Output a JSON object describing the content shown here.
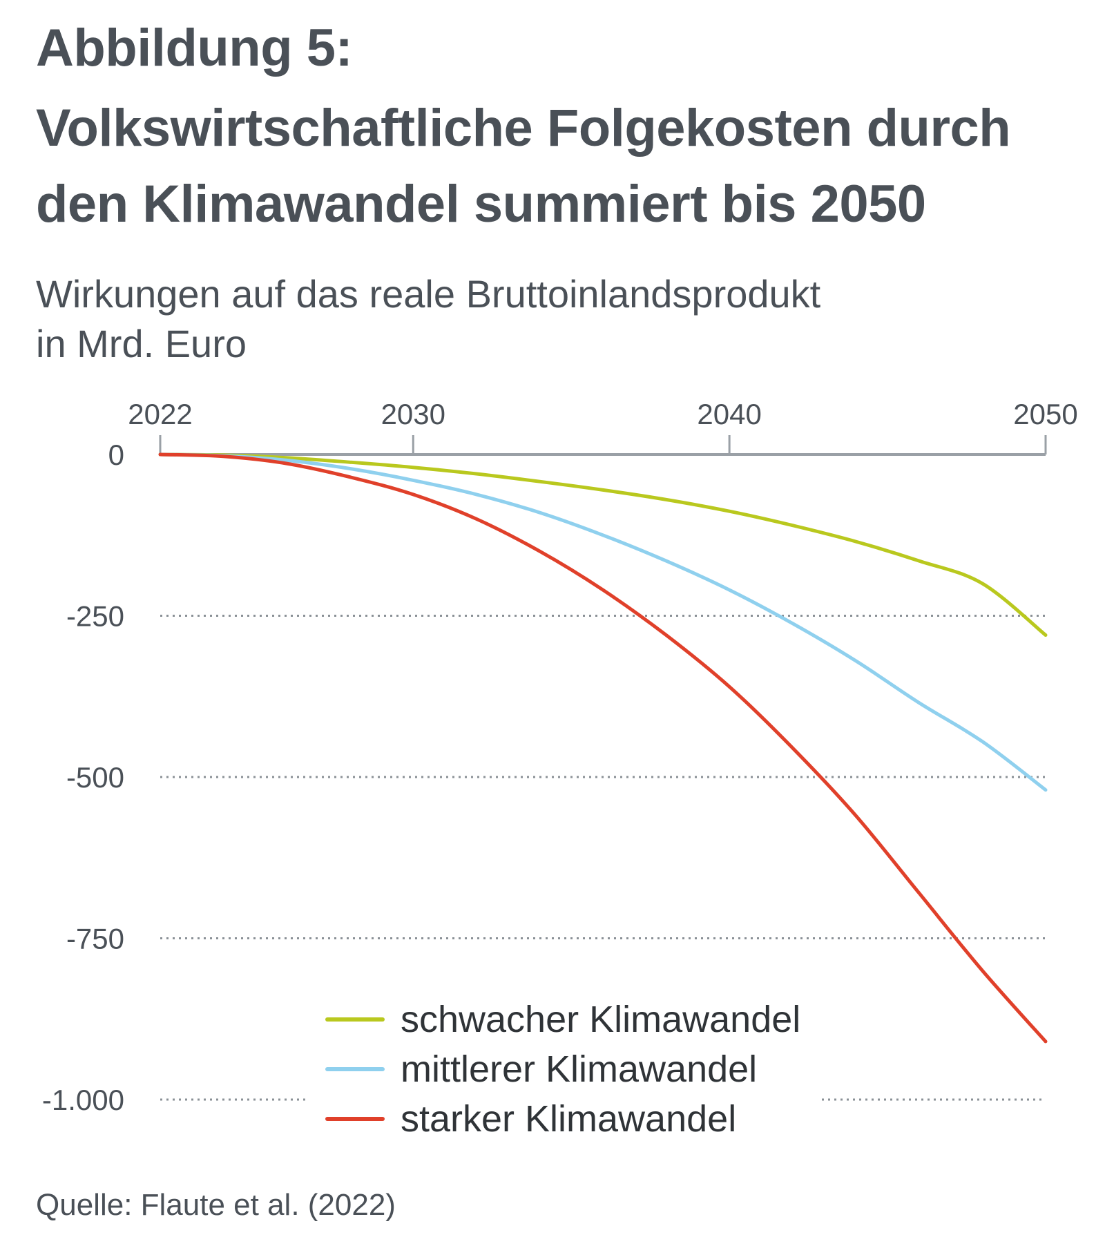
{
  "header": {
    "title_lines": [
      "Abbildung 5:",
      "Volkswirtschaftliche Folgekosten durch",
      "den Klimawandel summiert bis 2050"
    ],
    "subtitle_lines": [
      "Wirkungen auf das reale Bruttoinlandsprodukt",
      "in Mrd. Euro"
    ]
  },
  "source": "Quelle: Flaute et al. (2022)",
  "colors": {
    "text": "#4a5057",
    "axis": "#9aa0a6",
    "grid": "#8a9096",
    "schwach": "#b9c81e",
    "mittel": "#8fd0ee",
    "stark": "#e0402a"
  },
  "chart_data": {
    "type": "line",
    "title": "Volkswirtschaftliche Folgekosten durch den Klimawandel summiert bis 2050",
    "xlabel": "",
    "ylabel": "",
    "x_ticks": [
      2022,
      2030,
      2040,
      2050
    ],
    "x_tick_labels": [
      "2022",
      "2030",
      "2040",
      "2050"
    ],
    "y_ticks": [
      0,
      -250,
      -500,
      -750,
      -1000
    ],
    "y_tick_labels": [
      "0",
      "-250",
      "-500",
      "-750",
      "-1.000"
    ],
    "xlim": [
      2022,
      2050
    ],
    "ylim": [
      -1000,
      0
    ],
    "x_axis_position": "top",
    "grid": "horizontal dotted",
    "legend_position": "bottom-center",
    "x": [
      2022,
      2024,
      2026,
      2028,
      2030,
      2032,
      2034,
      2036,
      2038,
      2040,
      2042,
      2044,
      2046,
      2048,
      2050
    ],
    "series": [
      {
        "name": "schwacher Klimawandel",
        "color": "#b9c81e",
        "values": [
          0,
          -1,
          -5,
          -12,
          -20,
          -30,
          -42,
          -55,
          -70,
          -88,
          -110,
          -135,
          -165,
          -200,
          -280
        ]
      },
      {
        "name": "mittlerer Klimawandel",
        "color": "#8fd0ee",
        "values": [
          0,
          -2,
          -9,
          -22,
          -40,
          -62,
          -90,
          -125,
          -165,
          -210,
          -262,
          -320,
          -385,
          -445,
          -520
        ]
      },
      {
        "name": "starker Klimawandel",
        "color": "#e0402a",
        "values": [
          0,
          -3,
          -14,
          -35,
          -62,
          -100,
          -150,
          -210,
          -280,
          -360,
          -455,
          -560,
          -680,
          -800,
          -910
        ]
      }
    ]
  }
}
